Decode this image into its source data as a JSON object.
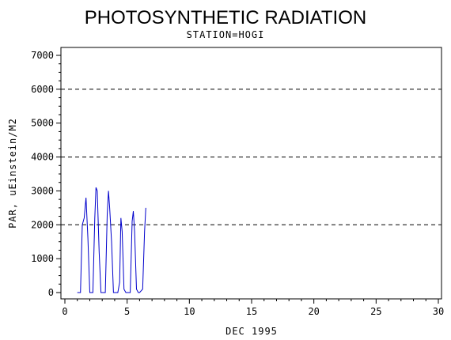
{
  "chart_data": {
    "type": "line",
    "title": "PHOTOSYNTHETIC RADIATION",
    "subtitle": "STATION=HOGI",
    "xlabel": "DEC 1995",
    "ylabel": "PAR, uEinstein/M2",
    "xlim": [
      0,
      30
    ],
    "ylim": [
      0,
      7000
    ],
    "x_ticks": [
      0,
      5,
      10,
      15,
      20,
      25,
      30
    ],
    "x_tick_labels": [
      "0",
      "5",
      "10",
      "15",
      "20",
      "25",
      "30"
    ],
    "y_ticks": [
      0,
      1000,
      2000,
      3000,
      4000,
      5000,
      6000,
      7000
    ],
    "y_tick_labels": [
      "0",
      "1000",
      "2000",
      "3000",
      "4000",
      "5000",
      "6000",
      "7000"
    ],
    "reference_lines": [
      2000,
      4000,
      6000
    ],
    "line_color": "#0000cc",
    "series": [
      {
        "x": [
          1.0,
          1.25,
          1.4,
          1.55,
          1.7,
          1.85,
          2.0,
          2.25,
          2.4,
          2.5,
          2.6,
          2.75,
          2.9,
          3.0,
          3.25,
          3.4,
          3.5,
          3.6,
          3.75,
          3.9,
          4.0,
          4.25,
          4.4,
          4.5,
          4.6,
          4.75,
          4.9,
          5.0,
          5.25,
          5.4,
          5.5,
          5.6,
          5.75,
          5.9,
          6.0,
          6.25,
          6.4,
          6.5
        ],
        "y": [
          0,
          0,
          2000,
          2200,
          2800,
          1600,
          0,
          0,
          2200,
          3100,
          3000,
          1200,
          0,
          0,
          0,
          2300,
          3000,
          2500,
          1500,
          0,
          0,
          0,
          300,
          2200,
          1800,
          100,
          0,
          0,
          0,
          2100,
          2400,
          1800,
          100,
          0,
          0,
          100,
          1800,
          2500
        ]
      }
    ]
  }
}
